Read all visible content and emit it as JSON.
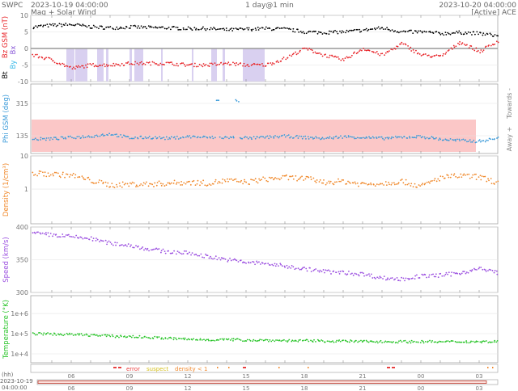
{
  "header": {
    "org": "SWPC",
    "start_time": "2023-10-19 04:00:00",
    "subtitle": "Mag + Solar Wind",
    "span": "1 day@1 min",
    "end_time": "2023-10-20 04:00:00",
    "source": "[Active] ACE"
  },
  "phi_side_labels": {
    "towards": "Towards -",
    "away": "Away +"
  },
  "flags": {
    "error": "error",
    "suspect": "suspect",
    "density": "density < 1"
  },
  "timeline": {
    "unit": "(hh)",
    "date": "2023-10-19",
    "time": "04:00:00"
  },
  "chart_data": [
    {
      "type": "scatter",
      "name": "mag",
      "ylabel_parts": [
        "Bt",
        "Bx",
        "By",
        "Bz GSM (nT)"
      ],
      "ylim": [
        -10,
        10
      ],
      "yticks": [
        10,
        5,
        0,
        -5,
        -10
      ],
      "series": [
        {
          "name": "Bt",
          "color": "#000000",
          "values": [
            6.5,
            7,
            7.2,
            6.5,
            6.2,
            6.5,
            6.3,
            6.2,
            6,
            6,
            5.6,
            5.8,
            6,
            5.8,
            5,
            4.8,
            5,
            5.5,
            6.2,
            5,
            5,
            4.5,
            4.8,
            4.5,
            3.8
          ]
        },
        {
          "name": "Bz",
          "color": "#e8252a",
          "values": [
            -2,
            -3.5,
            -6,
            -5,
            -5,
            -4.5,
            -4.5,
            -4.5,
            -5,
            -5,
            -4.5,
            -5,
            -5,
            -3,
            0,
            -2,
            -3.5,
            0,
            -2,
            1.5,
            -2,
            -2.5,
            2,
            -1,
            2.5
          ]
        }
      ]
    },
    {
      "type": "scatter",
      "name": "phi",
      "ylabel": "Phi GSM (deg)",
      "ylim": [
        36,
        423
      ],
      "yticks": [
        315,
        135
      ],
      "away_band": [
        45,
        225
      ],
      "series": [
        {
          "name": "Phi",
          "color": "#3a9ad9",
          "values": [
            115,
            118,
            125,
            132,
            145,
            122,
            126,
            120,
            130,
            125,
            330,
            120,
            126,
            132,
            125,
            120,
            130,
            125,
            120,
            126,
            130,
            115,
            108,
            104,
            122
          ]
        }
      ]
    },
    {
      "type": "scatter",
      "name": "density",
      "ylabel": "Density (1/cm³)",
      "scale": "log",
      "ylim": [
        0.09,
        10
      ],
      "yticks": [
        10,
        1
      ],
      "series": [
        {
          "name": "Density",
          "color": "#f0882a",
          "values": [
            3,
            2.8,
            2.6,
            1.8,
            1.3,
            1.4,
            1.4,
            1.5,
            1.6,
            1.5,
            1.8,
            1.6,
            2,
            2.2,
            2.1,
            1.6,
            1.7,
            1.4,
            1.5,
            1.7,
            1.2,
            2.2,
            2.5,
            2.3,
            1.5
          ]
        }
      ]
    },
    {
      "type": "scatter",
      "name": "speed",
      "ylabel": "Speed (km/s)",
      "ylim": [
        300,
        400
      ],
      "yticks": [
        400,
        350,
        300
      ],
      "series": [
        {
          "name": "Speed",
          "color": "#9b4fe0",
          "values": [
            390,
            388,
            385,
            382,
            375,
            372,
            366,
            362,
            360,
            355,
            350,
            346,
            344,
            340,
            336,
            332,
            330,
            328,
            322,
            320,
            325,
            326,
            330,
            336,
            330
          ]
        }
      ]
    },
    {
      "type": "scatter",
      "name": "temperature",
      "ylabel": "Temperature (°K)",
      "scale": "log",
      "ylim": [
        3630,
        7600000
      ],
      "yticks": [
        1000000,
        100000,
        10000
      ],
      "yticklabels": [
        "1e+6",
        "1e+5",
        "1e+4"
      ],
      "series": [
        {
          "name": "Temperature",
          "color": "#27c427",
          "values": [
            100000,
            95000,
            90000,
            85000,
            75000,
            72000,
            65000,
            58000,
            52000,
            50000,
            50000,
            48000,
            47000,
            45000,
            44000,
            43000,
            42000,
            41000,
            40000,
            40000,
            40000,
            39000,
            40000,
            40000,
            40000
          ]
        }
      ]
    }
  ],
  "time_axis": {
    "ticks": [
      "06",
      "09",
      "12",
      "15",
      "18",
      "21",
      "00",
      "03"
    ]
  }
}
